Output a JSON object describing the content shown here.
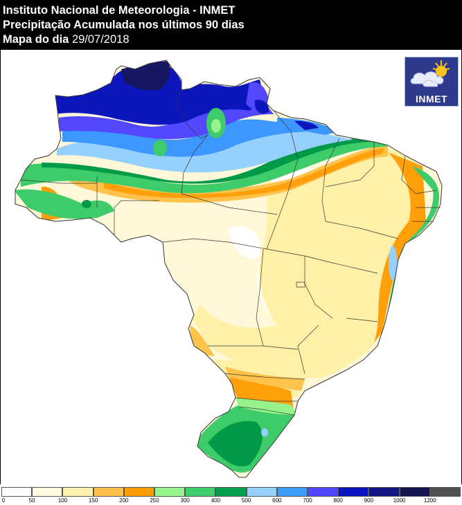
{
  "header": {
    "line1": "Instituto Nacional de Meteorologia - INMET",
    "line2": "Precipitação Acumulada nos últimos 90 dias",
    "line3_label": "Mapa do dia",
    "line3_date": "29/07/2018"
  },
  "logo": {
    "text": "INMET",
    "icon": "sun-cloud-icon"
  },
  "legend": {
    "ticks": [
      "0",
      "50",
      "100",
      "150",
      "200",
      "250",
      "300",
      "400",
      "500",
      "600",
      "700",
      "800",
      "900",
      "1000",
      "1200"
    ],
    "colors": [
      "#ffffff",
      "#fffadd",
      "#fff2ad",
      "#ffc14b",
      "#ff9d00",
      "#96f58c",
      "#3fce6c",
      "#00a04b",
      "#96d2ff",
      "#3c9bff",
      "#5046ff",
      "#0a14be",
      "#141782",
      "#141450",
      "#505050"
    ]
  },
  "map_colors": {
    "white": "#ffffff",
    "cream": "#fff8d8",
    "lightyellow": "#fff0a8",
    "lightorange": "#ffc24a",
    "orange": "#ff9f0a",
    "lightgreen": "#96f38c",
    "green": "#3ecb6a",
    "darkgreen": "#009a48",
    "lightblue": "#96d0ff",
    "blue": "#3c98ff",
    "violet": "#5248ff",
    "navy": "#0c16bc",
    "darknavy": "#161760",
    "border": "#333333"
  }
}
